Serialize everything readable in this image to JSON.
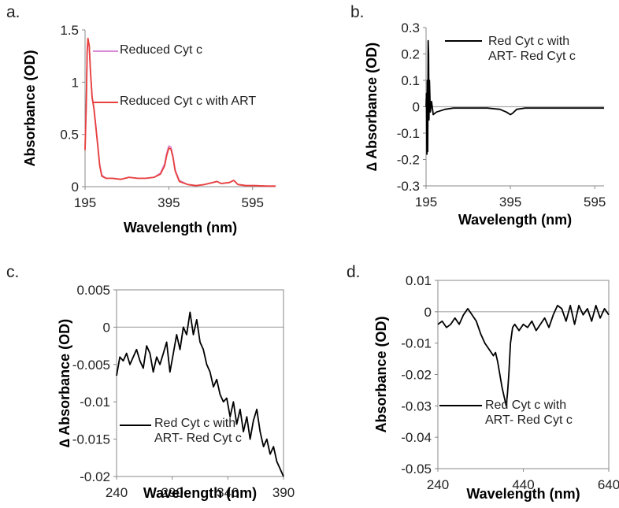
{
  "chart_data": [
    {
      "type": "line",
      "panel_label": "a.",
      "y_label": "Absorbance (OD)",
      "x_label": "Wavelength (nm)",
      "frame": "axes",
      "zero_line": false,
      "x": [
        195,
        198,
        200,
        202,
        205,
        208,
        212,
        216,
        220,
        225,
        230,
        235,
        245,
        260,
        280,
        300,
        320,
        340,
        360,
        375,
        385,
        390,
        395,
        400,
        405,
        410,
        420,
        440,
        460,
        480,
        500,
        510,
        520,
        540,
        550,
        560,
        580,
        600,
        630,
        650
      ],
      "series": [
        {
          "name": "Reduced Cyt c",
          "color": "#d98bd6",
          "values": [
            0.36,
            0.82,
            1.3,
            1.4,
            1.34,
            1.1,
            0.86,
            0.76,
            0.61,
            0.41,
            0.21,
            0.11,
            0.08,
            0.08,
            0.07,
            0.09,
            0.08,
            0.08,
            0.09,
            0.13,
            0.22,
            0.32,
            0.39,
            0.38,
            0.29,
            0.16,
            0.06,
            0.02,
            0.01,
            0.02,
            0.04,
            0.05,
            0.03,
            0.04,
            0.06,
            0.02,
            0.01,
            0.01,
            0.005,
            0.005
          ]
        },
        {
          "name": "Reduced Cyt c with ART",
          "color": "#e8413c",
          "values": [
            0.35,
            0.8,
            1.3,
            1.42,
            1.35,
            1.1,
            0.85,
            0.75,
            0.6,
            0.4,
            0.2,
            0.1,
            0.08,
            0.08,
            0.07,
            0.09,
            0.08,
            0.08,
            0.09,
            0.12,
            0.2,
            0.3,
            0.37,
            0.36,
            0.28,
            0.15,
            0.05,
            0.02,
            0.01,
            0.02,
            0.04,
            0.05,
            0.03,
            0.04,
            0.06,
            0.02,
            0.01,
            0.01,
            0.005,
            0.005
          ]
        }
      ],
      "xlim": [
        195,
        650
      ],
      "xticks": [
        195,
        395,
        595
      ],
      "ylim": [
        0,
        1.5
      ],
      "yticks": [
        0,
        0.5,
        1,
        1.5
      ]
    },
    {
      "type": "line",
      "panel_label": "b.",
      "y_label": "∆ Absorbance (OD)",
      "x_label": "Wavelength (nm)",
      "frame": "axes",
      "zero_line": true,
      "x": [
        195,
        196,
        197,
        198,
        199,
        200,
        201,
        202,
        203,
        205,
        208,
        212,
        220,
        240,
        260,
        300,
        340,
        370,
        385,
        395,
        400,
        410,
        430,
        500,
        600,
        617
      ],
      "series": [
        {
          "name": "Red Cyt c with ART- Red Cyt c",
          "color": "#000000",
          "values": [
            0,
            0.05,
            -0.18,
            0.1,
            -0.17,
            0.25,
            0.2,
            -0.05,
            0.1,
            -0.02,
            0.02,
            -0.03,
            -0.02,
            -0.01,
            -0.005,
            -0.005,
            -0.005,
            -0.01,
            -0.02,
            -0.03,
            -0.025,
            -0.01,
            -0.005,
            -0.005,
            -0.005,
            -0.005
          ]
        }
      ],
      "xlim": [
        195,
        617
      ],
      "xticks": [
        195,
        395,
        595
      ],
      "ylim": [
        -0.3,
        0.3
      ],
      "yticks": [
        -0.3,
        -0.2,
        -0.1,
        0,
        0.1,
        0.2,
        0.3
      ]
    },
    {
      "type": "line",
      "panel_label": "c.",
      "y_label": "∆ Absorbance (OD)",
      "x_label": "Wavelength (nm)",
      "frame": "box",
      "zero_line": true,
      "x": [
        240,
        243,
        246,
        249,
        252,
        255,
        258,
        261,
        264,
        267,
        270,
        273,
        276,
        279,
        282,
        285,
        288,
        291,
        294,
        297,
        300,
        303,
        306,
        309,
        312,
        315,
        318,
        321,
        324,
        327,
        330,
        333,
        336,
        339,
        342,
        345,
        348,
        351,
        354,
        357,
        360,
        363,
        366,
        369,
        372,
        375,
        378,
        381,
        384,
        387,
        390
      ],
      "series": [
        {
          "name": "Red Cyt c with ART- Red Cyt c",
          "color": "#000000",
          "values": [
            -0.0065,
            -0.004,
            -0.0045,
            -0.0035,
            -0.005,
            -0.004,
            -0.003,
            -0.0045,
            -0.0055,
            -0.0025,
            -0.0035,
            -0.006,
            -0.004,
            -0.005,
            -0.0035,
            -0.002,
            -0.006,
            -0.0035,
            -0.001,
            -0.003,
            0,
            -0.001,
            0.002,
            -0.001,
            0.001,
            -0.002,
            -0.003,
            -0.005,
            -0.006,
            -0.008,
            -0.007,
            -0.009,
            -0.01,
            -0.0095,
            -0.012,
            -0.01,
            -0.013,
            -0.011,
            -0.014,
            -0.012,
            -0.015,
            -0.0125,
            -0.011,
            -0.014,
            -0.016,
            -0.015,
            -0.017,
            -0.016,
            -0.018,
            -0.019,
            -0.02
          ]
        }
      ],
      "xlim": [
        240,
        390
      ],
      "xticks": [
        240,
        290,
        340,
        390
      ],
      "ylim": [
        -0.02,
        0.005
      ],
      "yticks": [
        -0.02,
        -0.015,
        -0.01,
        -0.005,
        0,
        0.005
      ]
    },
    {
      "type": "line",
      "panel_label": "d.",
      "y_label": "Absorbance (OD)",
      "x_label": "Wavelength (nm)",
      "frame": "box",
      "zero_line": true,
      "x": [
        240,
        250,
        260,
        270,
        280,
        290,
        300,
        310,
        320,
        330,
        340,
        350,
        360,
        370,
        375,
        380,
        385,
        390,
        395,
        400,
        403,
        406,
        410,
        415,
        420,
        430,
        440,
        450,
        460,
        470,
        480,
        490,
        500,
        510,
        520,
        530,
        540,
        550,
        560,
        570,
        580,
        590,
        600,
        610,
        620,
        630,
        640
      ],
      "series": [
        {
          "name": "Red Cyt c with ART- Red Cyt c",
          "color": "#000000",
          "values": [
            -0.004,
            -0.003,
            -0.005,
            -0.004,
            -0.002,
            -0.004,
            -0.001,
            0.001,
            -0.001,
            -0.003,
            -0.007,
            -0.01,
            -0.012,
            -0.014,
            -0.013,
            -0.016,
            -0.02,
            -0.024,
            -0.027,
            -0.03,
            -0.026,
            -0.02,
            -0.01,
            -0.005,
            -0.004,
            -0.006,
            -0.004,
            -0.005,
            -0.003,
            -0.006,
            -0.004,
            -0.002,
            -0.005,
            -0.001,
            0.002,
            0.001,
            -0.003,
            0.002,
            -0.004,
            0.002,
            -0.001,
            0.001,
            -0.003,
            0.002,
            -0.002,
            0.001,
            -0.001
          ]
        }
      ],
      "xlim": [
        240,
        640
      ],
      "xticks": [
        240,
        440,
        640
      ],
      "ylim": [
        -0.05,
        0.01
      ],
      "yticks": [
        -0.05,
        -0.04,
        -0.03,
        -0.02,
        -0.01,
        0,
        0.01
      ]
    }
  ]
}
